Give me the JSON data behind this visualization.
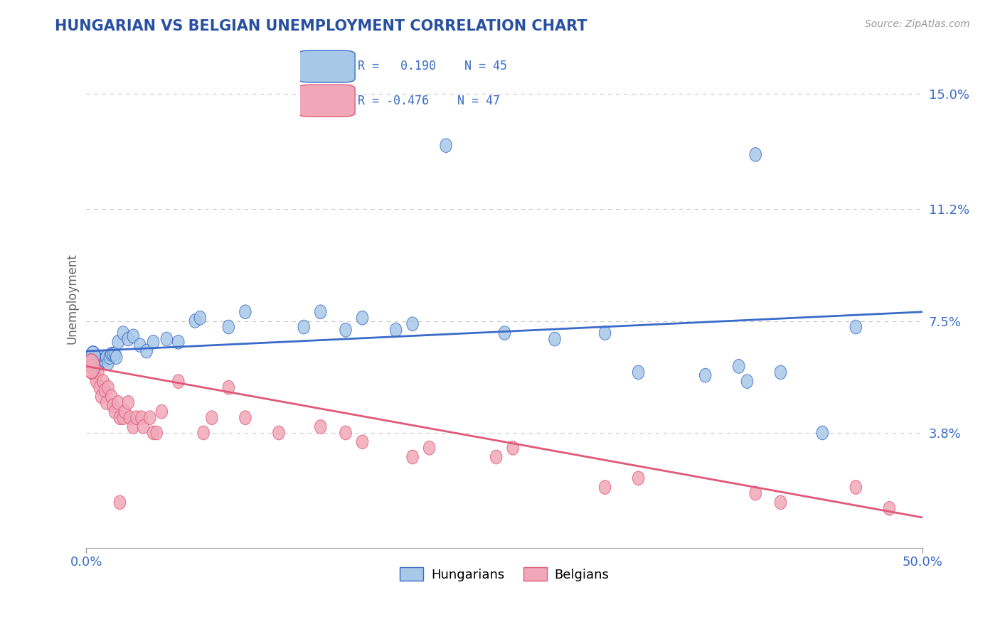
{
  "title": "HUNGARIAN VS BELGIAN UNEMPLOYMENT CORRELATION CHART",
  "source": "Source: ZipAtlas.com",
  "ylabel": "Unemployment",
  "xmin": 0.0,
  "xmax": 0.5,
  "ymin": 0.0,
  "ymax": 0.165,
  "yticks": [
    0.038,
    0.075,
    0.112,
    0.15
  ],
  "ytick_labels": [
    "3.8%",
    "7.5%",
    "11.2%",
    "15.0%"
  ],
  "xticks": [
    0.0,
    0.5
  ],
  "xtick_labels": [
    "0.0%",
    "50.0%"
  ],
  "blue_color": "#A8C8E8",
  "pink_color": "#F0A8B8",
  "blue_line_color": "#3A6BC8",
  "pink_line_color": "#E05878",
  "R_blue": 0.19,
  "N_blue": 45,
  "R_pink": -0.476,
  "N_pink": 47,
  "legend_labels": [
    "Hungarians",
    "Belgians"
  ],
  "background_color": "#FFFFFF",
  "grid_color": "#C8C8C8",
  "title_color": "#2850A0",
  "axis_label_color": "#3A6BC8",
  "blue_trend": [
    0.065,
    0.078
  ],
  "pink_trend": [
    0.06,
    0.01
  ],
  "blue_dots": [
    [
      0.003,
      0.063
    ],
    [
      0.005,
      0.063
    ],
    [
      0.007,
      0.063
    ],
    [
      0.008,
      0.061
    ],
    [
      0.009,
      0.063
    ],
    [
      0.01,
      0.062
    ],
    [
      0.011,
      0.062
    ],
    [
      0.012,
      0.063
    ],
    [
      0.013,
      0.061
    ],
    [
      0.014,
      0.063
    ],
    [
      0.015,
      0.064
    ],
    [
      0.016,
      0.064
    ],
    [
      0.017,
      0.064
    ],
    [
      0.018,
      0.063
    ],
    [
      0.019,
      0.068
    ],
    [
      0.022,
      0.071
    ],
    [
      0.025,
      0.069
    ],
    [
      0.028,
      0.07
    ],
    [
      0.032,
      0.067
    ],
    [
      0.036,
      0.065
    ],
    [
      0.04,
      0.068
    ],
    [
      0.048,
      0.069
    ],
    [
      0.055,
      0.068
    ],
    [
      0.065,
      0.075
    ],
    [
      0.068,
      0.076
    ],
    [
      0.085,
      0.073
    ],
    [
      0.095,
      0.078
    ],
    [
      0.13,
      0.073
    ],
    [
      0.14,
      0.078
    ],
    [
      0.155,
      0.072
    ],
    [
      0.165,
      0.076
    ],
    [
      0.185,
      0.072
    ],
    [
      0.195,
      0.074
    ],
    [
      0.25,
      0.071
    ],
    [
      0.28,
      0.069
    ],
    [
      0.31,
      0.071
    ],
    [
      0.33,
      0.058
    ],
    [
      0.37,
      0.057
    ],
    [
      0.39,
      0.06
    ],
    [
      0.395,
      0.055
    ],
    [
      0.415,
      0.058
    ],
    [
      0.44,
      0.038
    ],
    [
      0.46,
      0.073
    ],
    [
      0.215,
      0.133
    ],
    [
      0.4,
      0.13
    ]
  ],
  "pink_dots": [
    [
      0.003,
      0.06
    ],
    [
      0.005,
      0.057
    ],
    [
      0.006,
      0.055
    ],
    [
      0.007,
      0.058
    ],
    [
      0.008,
      0.053
    ],
    [
      0.009,
      0.05
    ],
    [
      0.01,
      0.055
    ],
    [
      0.011,
      0.052
    ],
    [
      0.012,
      0.048
    ],
    [
      0.013,
      0.053
    ],
    [
      0.015,
      0.05
    ],
    [
      0.016,
      0.047
    ],
    [
      0.017,
      0.045
    ],
    [
      0.019,
      0.048
    ],
    [
      0.02,
      0.043
    ],
    [
      0.022,
      0.043
    ],
    [
      0.023,
      0.045
    ],
    [
      0.025,
      0.048
    ],
    [
      0.026,
      0.043
    ],
    [
      0.028,
      0.04
    ],
    [
      0.03,
      0.043
    ],
    [
      0.033,
      0.043
    ],
    [
      0.034,
      0.04
    ],
    [
      0.038,
      0.043
    ],
    [
      0.04,
      0.038
    ],
    [
      0.042,
      0.038
    ],
    [
      0.045,
      0.045
    ],
    [
      0.055,
      0.055
    ],
    [
      0.07,
      0.038
    ],
    [
      0.075,
      0.043
    ],
    [
      0.085,
      0.053
    ],
    [
      0.095,
      0.043
    ],
    [
      0.115,
      0.038
    ],
    [
      0.14,
      0.04
    ],
    [
      0.155,
      0.038
    ],
    [
      0.165,
      0.035
    ],
    [
      0.195,
      0.03
    ],
    [
      0.205,
      0.033
    ],
    [
      0.245,
      0.03
    ],
    [
      0.255,
      0.033
    ],
    [
      0.31,
      0.02
    ],
    [
      0.33,
      0.023
    ],
    [
      0.4,
      0.018
    ],
    [
      0.415,
      0.015
    ],
    [
      0.46,
      0.02
    ],
    [
      0.48,
      0.013
    ],
    [
      0.02,
      0.015
    ]
  ]
}
